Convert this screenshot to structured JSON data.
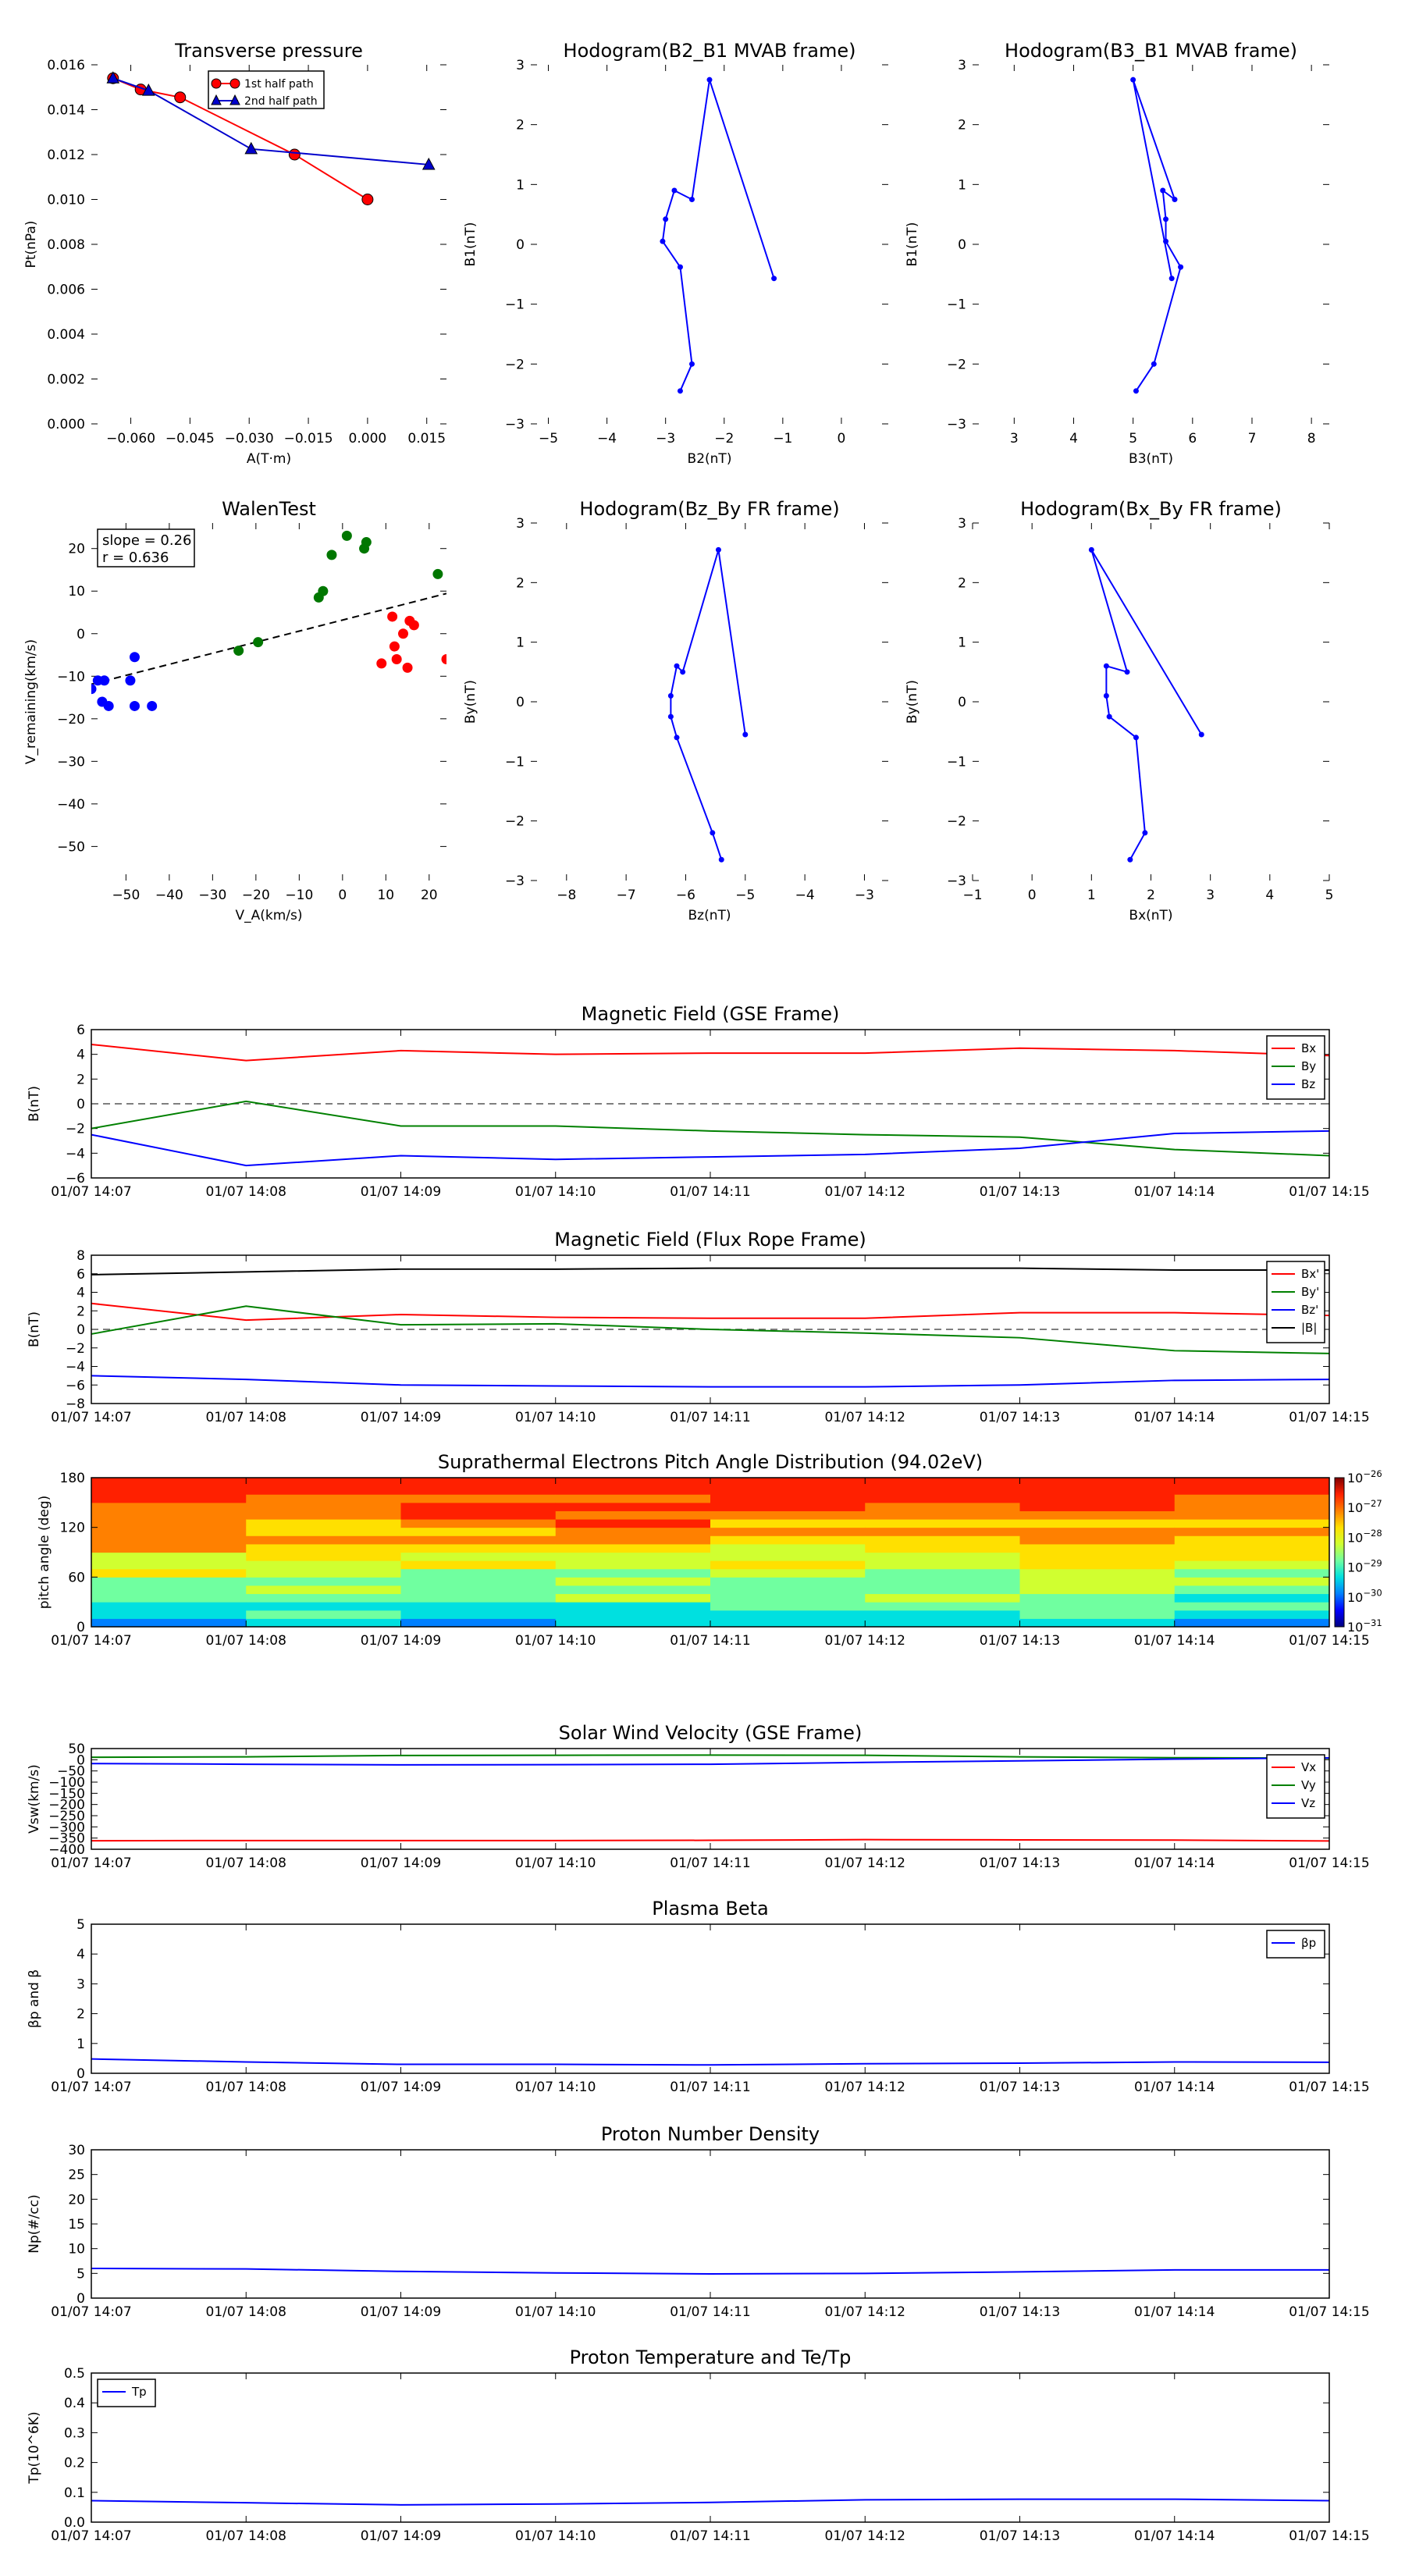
{
  "time_ticks": [
    "01/07 14:07",
    "01/07 14:08",
    "01/07 14:09",
    "01/07 14:10",
    "01/07 14:11",
    "01/07 14:12",
    "01/07 14:13",
    "01/07 14:14",
    "01/07 14:15"
  ],
  "chart_data": [
    {
      "id": "transverse",
      "type": "line",
      "title": "Transverse pressure",
      "xlabel": "A(T·m)",
      "ylabel": "Pt(nPa)",
      "xlim": [
        -0.07,
        0.02
      ],
      "ylim": [
        0,
        0.016
      ],
      "xticks": [
        -0.06,
        -0.045,
        -0.03,
        -0.015,
        0.0,
        0.015
      ],
      "xtick_labels": [
        "−0.060",
        "−0.045",
        "−0.030",
        "−0.015",
        "0.000",
        "0.015"
      ],
      "yticks": [
        0,
        0.002,
        0.004,
        0.006,
        0.008,
        0.01,
        0.012,
        0.014,
        0.016
      ],
      "ytick_labels": [
        "0.000",
        "0.002",
        "0.004",
        "0.006",
        "0.008",
        "0.010",
        "0.012",
        "0.014",
        "0.016"
      ],
      "legend": "top-center",
      "series": [
        {
          "name": "1st half path",
          "color": "#ff0000",
          "marker": "circle",
          "x": [
            -0.0645,
            -0.0575,
            -0.0475,
            -0.0185,
            0.0
          ],
          "y": [
            0.0154,
            0.0149,
            0.01455,
            0.012,
            0.01
          ]
        },
        {
          "name": "2nd half path",
          "color": "#0000cc",
          "marker": "triangle",
          "x": [
            -0.0645,
            -0.0555,
            -0.0295,
            0.0155
          ],
          "y": [
            0.0154,
            0.01485,
            0.01225,
            0.01155
          ]
        }
      ]
    },
    {
      "id": "hodo1",
      "type": "line",
      "title": "Hodogram(B2_B1 MVAB frame)",
      "xlabel": "B2(nT)",
      "ylabel": "B1(nT)",
      "xlim": [
        -5.3,
        0.8
      ],
      "ylim": [
        -3,
        3
      ],
      "xticks": [
        -5,
        -4,
        -3,
        -2,
        -1,
        0
      ],
      "xtick_labels": [
        "−5",
        "−4",
        "−3",
        "−2",
        "−1",
        "0"
      ],
      "yticks": [
        -3,
        -2,
        -1,
        0,
        1,
        2,
        3
      ],
      "ytick_labels": [
        "−3",
        "−2",
        "−1",
        "0",
        "1",
        "2",
        "3"
      ],
      "series": [
        {
          "color": "#0000ff",
          "marker": "dot",
          "x": [
            -1.15,
            -2.25,
            -2.55,
            -2.85,
            -3.0,
            -3.05,
            -2.75,
            -2.55,
            -2.75
          ],
          "y": [
            -0.57,
            2.75,
            0.75,
            0.9,
            0.42,
            0.05,
            -0.38,
            -2.0,
            -2.45
          ]
        }
      ]
    },
    {
      "id": "hodo2",
      "type": "line",
      "title": "Hodogram(B3_B1 MVAB frame)",
      "xlabel": "B3(nT)",
      "ylabel": "B1(nT)",
      "xlim": [
        2.3,
        8.3
      ],
      "ylim": [
        -3,
        3
      ],
      "xticks": [
        3,
        4,
        5,
        6,
        7,
        8
      ],
      "xtick_labels": [
        "3",
        "4",
        "5",
        "6",
        "7",
        "8"
      ],
      "yticks": [
        -3,
        -2,
        -1,
        0,
        1,
        2,
        3
      ],
      "ytick_labels": [
        "−3",
        "−2",
        "−1",
        "0",
        "1",
        "2",
        "3"
      ],
      "series": [
        {
          "color": "#0000ff",
          "marker": "dot",
          "x": [
            5.65,
            5.0,
            5.7,
            5.5,
            5.55,
            5.55,
            5.8,
            5.35,
            5.05
          ],
          "y": [
            -0.57,
            2.75,
            0.75,
            0.9,
            0.42,
            0.05,
            -0.38,
            -2.0,
            -2.45
          ]
        }
      ]
    },
    {
      "id": "walen",
      "type": "scatter",
      "title": "WalenTest",
      "xlabel": "V_A(km/s)",
      "ylabel": "V_remaining(km/s)",
      "xlim": [
        -58,
        24
      ],
      "ylim": [
        -58,
        26
      ],
      "xticks": [
        -50,
        -40,
        -30,
        -20,
        -10,
        0,
        10,
        20
      ],
      "xtick_labels": [
        "−50",
        "−40",
        "−30",
        "−20",
        "−10",
        "0",
        "10",
        "20"
      ],
      "yticks": [
        -50,
        -40,
        -30,
        -20,
        -10,
        0,
        10,
        20
      ],
      "ytick_labels": [
        "−50",
        "−40",
        "−30",
        "−20",
        "−10",
        "0",
        "10",
        "20"
      ],
      "annotation": [
        "slope = 0.26",
        "r = 0.636"
      ],
      "fit_line": {
        "slope": 0.26,
        "intercept": 3.2,
        "color": "#000000"
      },
      "series": [
        {
          "color": "#0000ff",
          "x": [
            -58,
            -56.5,
            -55.5,
            -55,
            -54,
            -49,
            -48,
            -48,
            -44
          ],
          "y": [
            -13,
            -11,
            -16,
            -11,
            -17,
            -11,
            -5.5,
            -17,
            -17
          ]
        },
        {
          "color": "#007700",
          "x": [
            -24,
            -19.5,
            -5.5,
            -4.5,
            -2.5,
            1,
            5,
            5.5,
            22
          ],
          "y": [
            -4,
            -2,
            8.5,
            10,
            18.5,
            23,
            20,
            21.5,
            14
          ]
        },
        {
          "color": "#ff0000",
          "x": [
            9,
            11.5,
            12,
            12.5,
            14,
            15,
            15.5,
            16.5,
            24
          ],
          "y": [
            -7,
            4,
            -3,
            -6,
            0,
            -8,
            3,
            2,
            -6
          ]
        }
      ]
    },
    {
      "id": "hodo3",
      "type": "line",
      "title": "Hodogram(Bz_By FR frame)",
      "xlabel": "Bz(nT)",
      "ylabel": "By(nT)",
      "xlim": [
        -8.6,
        -2.6
      ],
      "ylim": [
        -3,
        3
      ],
      "xticks": [
        -8,
        -7,
        -6,
        -5,
        -4,
        -3
      ],
      "xtick_labels": [
        "−8",
        "−7",
        "−6",
        "−5",
        "−4",
        "−3"
      ],
      "yticks": [
        -3,
        -2,
        -1,
        0,
        1,
        2,
        3
      ],
      "ytick_labels": [
        "−3",
        "−2",
        "−1",
        "0",
        "1",
        "2",
        "3"
      ],
      "series": [
        {
          "color": "#0000ff",
          "marker": "dot",
          "x": [
            -5.0,
            -5.45,
            -6.05,
            -6.15,
            -6.25,
            -6.25,
            -6.15,
            -5.55,
            -5.4
          ],
          "y": [
            -0.55,
            2.55,
            0.5,
            0.6,
            0.1,
            -0.25,
            -0.6,
            -2.2,
            -2.65
          ]
        }
      ]
    },
    {
      "id": "hodo4",
      "type": "line",
      "title": "Hodogram(Bx_By FR frame)",
      "xlabel": "Bx(nT)",
      "ylabel": "By(nT)",
      "xlim": [
        -1,
        5
      ],
      "ylim": [
        -3,
        3
      ],
      "xticks": [
        -1,
        0,
        1,
        2,
        3,
        4,
        5
      ],
      "xtick_labels": [
        "−1",
        "0",
        "1",
        "2",
        "3",
        "4",
        "5"
      ],
      "yticks": [
        -3,
        -2,
        -1,
        0,
        1,
        2,
        3
      ],
      "ytick_labels": [
        "−3",
        "−2",
        "−1",
        "0",
        "1",
        "2",
        "3"
      ],
      "series": [
        {
          "color": "#0000ff",
          "marker": "dot",
          "x": [
            2.85,
            1.0,
            1.6,
            1.25,
            1.25,
            1.3,
            1.75,
            1.9,
            1.65
          ],
          "y": [
            -0.55,
            2.55,
            0.5,
            0.6,
            0.1,
            -0.25,
            -0.6,
            -2.2,
            -2.65
          ]
        }
      ]
    },
    {
      "id": "bgse",
      "type": "line",
      "title": "Magnetic Field (GSE Frame)",
      "ylabel": "B(nT)",
      "ylim": [
        -6,
        6
      ],
      "yticks": [
        -6,
        -4,
        -2,
        0,
        2,
        4,
        6
      ],
      "ytick_labels": [
        "−6",
        "−4",
        "−2",
        "0",
        "2",
        "4",
        "6"
      ],
      "zero_line": true,
      "legend": "top-right",
      "series": [
        {
          "name": "Bx",
          "color": "#ff0000",
          "values": [
            4.8,
            3.5,
            4.3,
            4.0,
            4.1,
            4.1,
            4.5,
            4.3,
            3.9
          ]
        },
        {
          "name": "By",
          "color": "#008000",
          "values": [
            -2.0,
            0.2,
            -1.8,
            -1.8,
            -2.2,
            -2.5,
            -2.7,
            -3.7,
            -4.2
          ]
        },
        {
          "name": "Bz",
          "color": "#0000ff",
          "values": [
            -2.5,
            -5.0,
            -4.2,
            -4.5,
            -4.3,
            -4.1,
            -3.6,
            -2.4,
            -2.2
          ]
        }
      ]
    },
    {
      "id": "bfr",
      "type": "line",
      "title": "Magnetic Field (Flux Rope Frame)",
      "ylabel": "B(nT)",
      "ylim": [
        -8,
        8
      ],
      "yticks": [
        -8,
        -6,
        -4,
        -2,
        0,
        2,
        4,
        6,
        8
      ],
      "ytick_labels": [
        "−8",
        "−6",
        "−4",
        "−2",
        "0",
        "2",
        "4",
        "6",
        "8"
      ],
      "zero_line": true,
      "legend": "top-right",
      "series": [
        {
          "name": "Bx'",
          "color": "#ff0000",
          "values": [
            2.8,
            1.0,
            1.6,
            1.3,
            1.2,
            1.2,
            1.8,
            1.8,
            1.5
          ]
        },
        {
          "name": "By'",
          "color": "#008000",
          "values": [
            -0.5,
            2.5,
            0.5,
            0.6,
            0.0,
            -0.4,
            -0.9,
            -2.3,
            -2.6
          ]
        },
        {
          "name": "Bz'",
          "color": "#0000ff",
          "values": [
            -5.0,
            -5.4,
            -6.0,
            -6.1,
            -6.2,
            -6.2,
            -6.0,
            -5.5,
            -5.4
          ]
        },
        {
          "name": "|B|",
          "color": "#000000",
          "values": [
            5.9,
            6.2,
            6.5,
            6.5,
            6.6,
            6.6,
            6.6,
            6.4,
            6.4
          ]
        }
      ]
    },
    {
      "id": "pad",
      "type": "heatmap",
      "title": "Suprathermal Electrons Pitch Angle Distribution (94.02eV)",
      "ylabel": "pitch angle (deg)",
      "ylim": [
        0,
        180
      ],
      "yticks": [
        0,
        60,
        120,
        180
      ],
      "ytick_labels": [
        "0",
        "60",
        "120",
        "180"
      ],
      "colorbar_ticks": [
        "10^-26",
        "10^-27",
        "10^-28",
        "10^-29",
        "10^-30",
        "10^-31"
      ],
      "palette": [
        "#00007f",
        "#0000ff",
        "#0080ff",
        "#00e0e0",
        "#70ffa0",
        "#d0ff30",
        "#ffe000",
        "#ff8000",
        "#ff2000",
        "#7f0000"
      ]
    },
    {
      "id": "vsw",
      "type": "line",
      "title": "Solar Wind Velocity (GSE Frame)",
      "ylabel": "Vsw(km/s)",
      "ylim": [
        -400,
        50
      ],
      "yticks": [
        -400,
        -350,
        -300,
        -250,
        -200,
        -150,
        -100,
        -50,
        0,
        50
      ],
      "ytick_labels": [
        "−400",
        "−350",
        "−300",
        "−250",
        "−200",
        "−150",
        "−100",
        "−50",
        "0",
        "50"
      ],
      "legend": "top-right",
      "series": [
        {
          "name": "Vx",
          "color": "#ff0000",
          "values": [
            -362,
            -361,
            -361,
            -361,
            -360,
            -357,
            -358,
            -359,
            -363
          ]
        },
        {
          "name": "Vy",
          "color": "#008000",
          "values": [
            11,
            13,
            19,
            20,
            21,
            20,
            13,
            9,
            7
          ]
        },
        {
          "name": "Vz",
          "color": "#0000ff",
          "values": [
            -17,
            -20,
            -23,
            -22,
            -20,
            -12,
            -5,
            3,
            8
          ]
        }
      ]
    },
    {
      "id": "beta",
      "type": "line",
      "title": "Plasma Beta",
      "ylabel": "βp and β",
      "ylim": [
        0,
        5
      ],
      "yticks": [
        0,
        1,
        2,
        3,
        4,
        5
      ],
      "ytick_labels": [
        "0",
        "1",
        "2",
        "3",
        "4",
        "5"
      ],
      "legend": "top-right",
      "series": [
        {
          "name": "βp",
          "color": "#0000ff",
          "values": [
            0.48,
            0.38,
            0.3,
            0.3,
            0.28,
            0.32,
            0.34,
            0.38,
            0.37
          ]
        }
      ]
    },
    {
      "id": "np",
      "type": "line",
      "title": "Proton Number Density",
      "ylabel": "Np(#/cc)",
      "ylim": [
        0,
        30
      ],
      "yticks": [
        0,
        5,
        10,
        15,
        20,
        25,
        30
      ],
      "ytick_labels": [
        "0",
        "5",
        "10",
        "15",
        "20",
        "25",
        "30"
      ],
      "series": [
        {
          "color": "#0000ff",
          "values": [
            6.0,
            5.9,
            5.4,
            5.1,
            4.9,
            5.0,
            5.3,
            5.7,
            5.7
          ]
        }
      ]
    },
    {
      "id": "tp",
      "type": "line",
      "title": "Proton Temperature and Te/Tp",
      "ylabel": "Tp(10^6K)",
      "ylim": [
        0,
        0.5
      ],
      "yticks": [
        0,
        0.1,
        0.2,
        0.3,
        0.4,
        0.5
      ],
      "ytick_labels": [
        "0.0",
        "0.1",
        "0.2",
        "0.3",
        "0.4",
        "0.5"
      ],
      "legend": "top-left",
      "series": [
        {
          "name": "Tp",
          "color": "#0000ff",
          "values": [
            0.072,
            0.065,
            0.058,
            0.061,
            0.066,
            0.075,
            0.077,
            0.077,
            0.072
          ]
        }
      ]
    }
  ]
}
